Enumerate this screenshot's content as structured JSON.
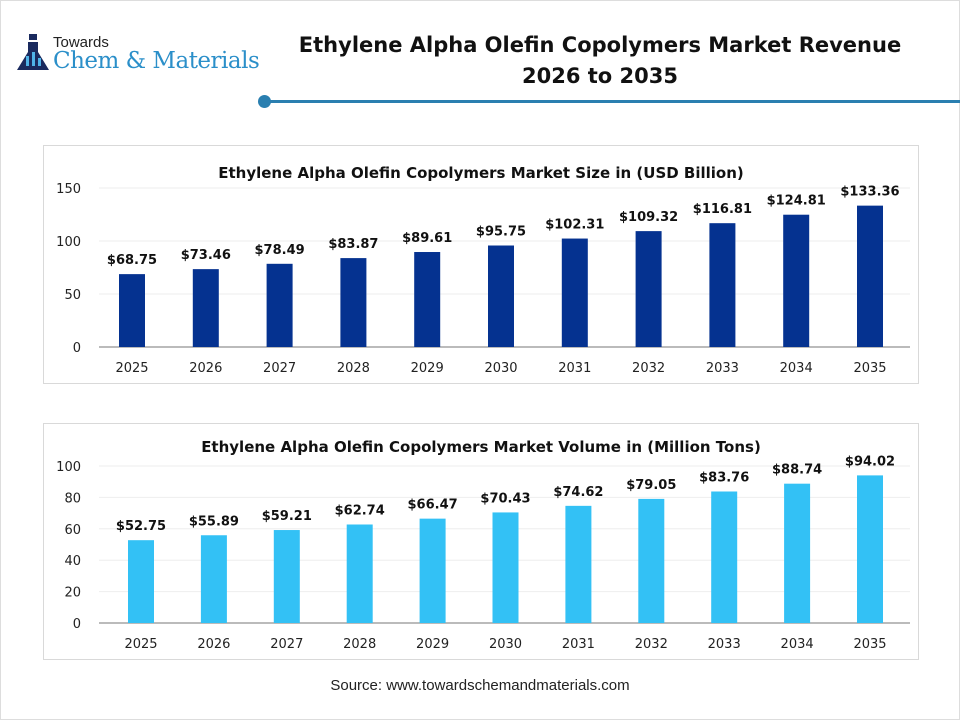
{
  "logo": {
    "line1": "Towards",
    "line2": "Chem & Materials"
  },
  "header": {
    "title_line1": "Ethylene Alpha Olefin Copolymers Market Revenue",
    "title_line2": "2026 to 2035"
  },
  "source": "Source: www.towardschemandmaterials.com",
  "chart_data": [
    {
      "type": "bar",
      "title": "Ethylene Alpha Olefin Copolymers Market Size in (USD Billion)",
      "categories": [
        "2025",
        "2026",
        "2027",
        "2028",
        "2029",
        "2030",
        "2031",
        "2032",
        "2033",
        "2034",
        "2035"
      ],
      "values": [
        68.75,
        73.46,
        78.49,
        83.87,
        89.61,
        95.75,
        102.31,
        109.32,
        116.81,
        124.81,
        133.36
      ],
      "labels": [
        "$68.75",
        "$73.46",
        "$78.49",
        "$83.87",
        "$89.61",
        "$95.75",
        "$102.31",
        "$109.32",
        "$116.81",
        "$124.81",
        "$133.36"
      ],
      "yticks": [
        0,
        50,
        100,
        150
      ],
      "ylim": [
        0,
        150
      ],
      "grid": true,
      "color": "#053290"
    },
    {
      "type": "bar",
      "title": "Ethylene Alpha Olefin Copolymers Market Volume in (Million Tons)",
      "categories": [
        "2025",
        "2026",
        "2027",
        "2028",
        "2029",
        "2030",
        "2031",
        "2032",
        "2033",
        "2034",
        "2035"
      ],
      "values": [
        52.75,
        55.89,
        59.21,
        62.74,
        66.47,
        70.43,
        74.62,
        79.05,
        83.76,
        88.74,
        94.02
      ],
      "labels": [
        "$52.75",
        "$55.89",
        "$59.21",
        "$62.74",
        "$66.47",
        "$70.43",
        "$74.62",
        "$79.05",
        "$83.76",
        "$88.74",
        "$94.02"
      ],
      "yticks": [
        0,
        20,
        40,
        60,
        80,
        100
      ],
      "ylim": [
        0,
        100
      ],
      "grid": true,
      "color": "#33C1F5"
    }
  ]
}
